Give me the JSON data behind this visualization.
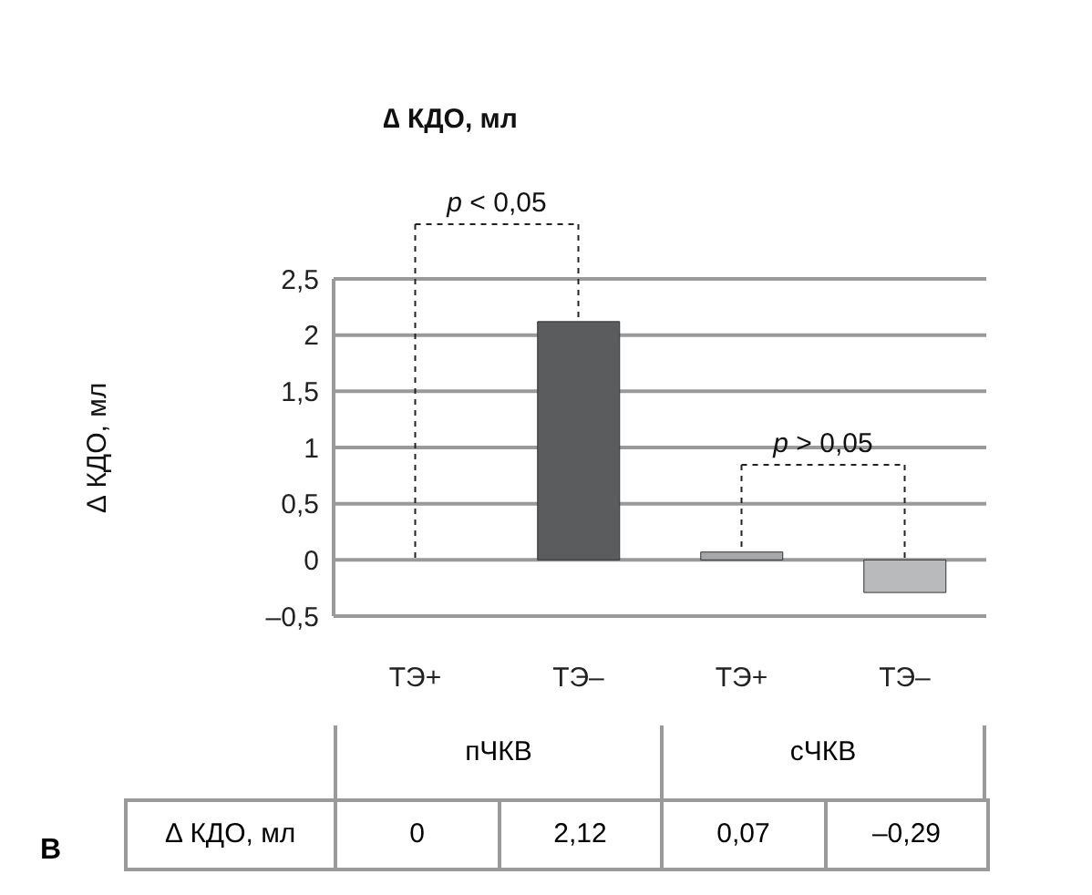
{
  "chart_data": {
    "type": "bar",
    "title": "∆ КДО, мл",
    "ylabel": "∆ КДО, мл",
    "categories": [
      "ТЭ+",
      "ТЭ–",
      "ТЭ+",
      "ТЭ–"
    ],
    "values": [
      0,
      2.12,
      0.07,
      -0.29
    ],
    "colors": [
      "#3c3d3f",
      "#5b5c5e",
      "#a7a8aa",
      "#b9babc"
    ],
    "ylim": [
      -0.5,
      2.5
    ],
    "yticks": [
      {
        "value": -0.5,
        "label": "–0,5"
      },
      0,
      {
        "value": 0.5,
        "label": "0,5"
      },
      1,
      {
        "value": 1.5,
        "label": "1,5"
      },
      2,
      {
        "value": 2.5,
        "label": "2,5"
      }
    ],
    "grid": "y",
    "legend": false,
    "data_labels": true,
    "value_labels": [
      "0",
      "2,12",
      "0,07",
      "–0,29"
    ],
    "annotations": [
      "p < 0,05",
      "p > 0,05",
      "пЧКВ",
      "сЧКВ",
      "В"
    ]
  }
}
